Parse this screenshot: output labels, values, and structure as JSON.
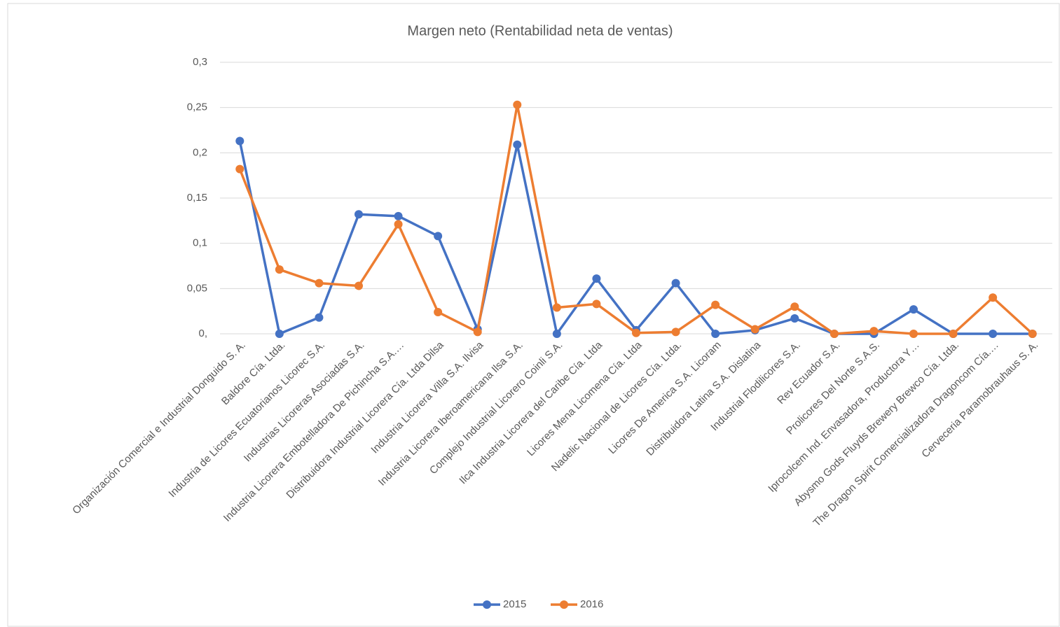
{
  "chart_data": {
    "type": "line",
    "title": "Margen neto (Rentabilidad neta de ventas)",
    "categories": [
      "Organización Comercial e Industrial Donguido S. A.",
      "Baldore Cía. Ltda.",
      "Industria de Licores Ecuatorianos Licorec S.A.",
      "Industrias Licoreras Asociadas S.A.",
      "Industria Licorera Embotelladora De Pichincha S.A.…",
      "Distribuidora Industrial Licorera Cía. Ltda Dilsa",
      "Industria Licorera Villa S.A. Ilvisa",
      "Industria Licorera Iberoamericana Ilsa S.A.",
      "Complejo Industrial Licorero Coinli S.A.",
      "Ilca Industria Licorera del Caribe Cía. Ltda",
      "Licores Mena Licomena Cía. Ltda",
      "Nadelic Nacional de Licores Cía. Ltda.",
      "Licores De America S.A. Licoram",
      "Distribuidora Latina S.A. Dislatina",
      "Industrial Flodilicores S.A.",
      "Rev Ecuador S.A.",
      "Prolicores Del Norte S.A.S.",
      "Iprocolcem Ind. Envasadora, Productora Y…",
      "Abysmo Gods Fluyds Brewery Brewco Cía. Ltda.",
      "The Dragon Spirit Comercializadora Dragoncom Cía.…",
      "Cerveceria Paramobrauhaus S. A."
    ],
    "series": [
      {
        "name": "2015",
        "color": "#4472c4",
        "values": [
          0.213,
          0,
          0.018,
          0.132,
          0.13,
          0.108,
          0.005,
          0.209,
          0,
          0.061,
          0.004,
          0.056,
          0,
          0.004,
          0.017,
          0,
          0,
          0.027,
          0,
          0,
          0
        ]
      },
      {
        "name": "2016",
        "color": "#ed7d31",
        "values": [
          0.182,
          0.071,
          0.056,
          0.053,
          0.121,
          0.024,
          0.002,
          0.253,
          0.029,
          0.033,
          0.001,
          0.002,
          0.032,
          0.005,
          0.03,
          0,
          0.003,
          0,
          0,
          0.04,
          0
        ]
      }
    ],
    "ylim": [
      0,
      0.3
    ],
    "yticks": [
      {
        "value": 0,
        "label": "0,"
      },
      {
        "value": 0.05,
        "label": "0,05"
      },
      {
        "value": 0.1,
        "label": "0,1"
      },
      {
        "value": 0.15,
        "label": "0,15"
      },
      {
        "value": 0.2,
        "label": "0,2"
      },
      {
        "value": 0.25,
        "label": "0,25"
      },
      {
        "value": 0.3,
        "label": "0,3"
      }
    ],
    "grid": true,
    "legend": "bottom"
  }
}
